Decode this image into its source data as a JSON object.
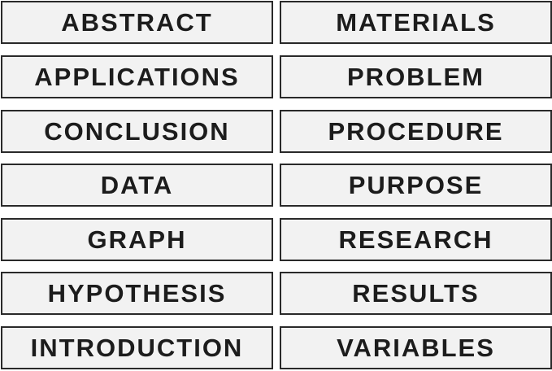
{
  "left_column": [
    "ABSTRACT",
    "APPLICATIONS",
    "CONCLUSION",
    "DATA",
    "GRAPH",
    "HYPOTHESIS",
    "INTRODUCTION"
  ],
  "right_column": [
    "MATERIALS",
    "PROBLEM",
    "PROCEDURE",
    "PURPOSE",
    "RESEARCH",
    "RESULTS",
    "VARIABLES"
  ]
}
